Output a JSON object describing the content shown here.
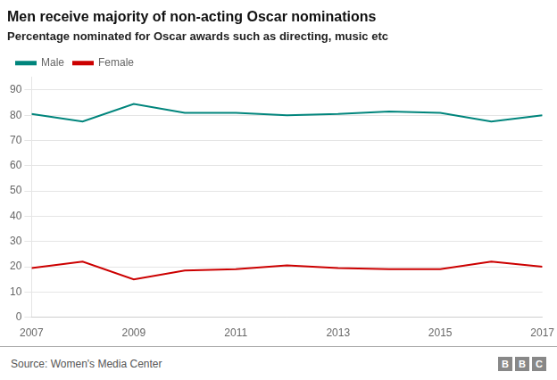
{
  "chart_data": {
    "type": "line",
    "title": "Men receive majority of non-acting Oscar nominations",
    "subtitle": "Percentage nominated for Oscar awards such as directing, music etc",
    "annotations": [
      "Source: Women's Media Center",
      "BBC"
    ],
    "x": [
      2007,
      2008,
      2009,
      2010,
      2011,
      2012,
      2013,
      2014,
      2015,
      2016,
      2017
    ],
    "series": [
      {
        "name": "Male",
        "color": "#00857c",
        "values": [
          80.5,
          77.5,
          84.5,
          81.0,
          81.0,
          80.0,
          80.5,
          81.5,
          81.0,
          77.5,
          80.0
        ]
      },
      {
        "name": "Female",
        "color": "#cc0000",
        "values": [
          19.5,
          22.0,
          15.0,
          18.5,
          19.0,
          20.5,
          19.5,
          19.0,
          19.0,
          22.0,
          20.0
        ]
      }
    ],
    "xlim": [
      2007,
      2017
    ],
    "xticks": [
      2007,
      2009,
      2011,
      2013,
      2015,
      2017
    ],
    "ylim": [
      0,
      95
    ],
    "yticks": [
      0,
      10,
      20,
      30,
      40,
      50,
      60,
      70,
      80,
      90
    ],
    "grid": true,
    "legend": "upper left"
  }
}
